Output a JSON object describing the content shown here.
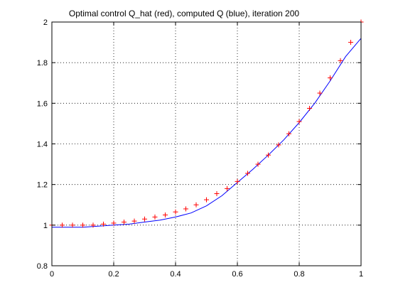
{
  "chart_data": {
    "type": "line",
    "title": "Optimal control Q_hat (red), computed Q (blue), iteration 200",
    "xlabel": "",
    "ylabel": "",
    "xlim": [
      0,
      1
    ],
    "ylim": [
      0.8,
      2
    ],
    "xticks": [
      "0",
      "0.2",
      "0.4",
      "0.6",
      "0.8",
      "1"
    ],
    "yticks": [
      "0.8",
      "1",
      "1.2",
      "1.4",
      "1.6",
      "1.8",
      "2"
    ],
    "grid": true,
    "series": [
      {
        "style": "markers",
        "marker": "plus",
        "color": "#ff0000",
        "x": [
          0,
          0.0333,
          0.0667,
          0.1,
          0.1333,
          0.1667,
          0.2,
          0.2333,
          0.2667,
          0.3,
          0.3333,
          0.3667,
          0.4,
          0.4333,
          0.4667,
          0.5,
          0.5333,
          0.5667,
          0.6,
          0.6333,
          0.6667,
          0.7,
          0.7333,
          0.7667,
          0.8,
          0.8333,
          0.8667,
          0.9,
          0.9333,
          0.9667,
          1
        ],
        "y": [
          1.0,
          1.0,
          1.0,
          1.0,
          1.0,
          1.005,
          1.01,
          1.015,
          1.02,
          1.03,
          1.04,
          1.05,
          1.065,
          1.08,
          1.1,
          1.125,
          1.155,
          1.18,
          1.215,
          1.255,
          1.3,
          1.345,
          1.395,
          1.45,
          1.51,
          1.575,
          1.65,
          1.725,
          1.81,
          1.9,
          2.0
        ]
      },
      {
        "style": "line",
        "color": "#0000ff",
        "x": [
          0,
          0.05,
          0.1,
          0.15,
          0.2,
          0.25,
          0.3,
          0.35,
          0.4,
          0.45,
          0.5,
          0.55,
          0.6,
          0.65,
          0.7,
          0.75,
          0.8,
          0.85,
          0.9,
          0.95,
          1
        ],
        "y": [
          0.99,
          0.99,
          0.99,
          0.995,
          1.0,
          1.005,
          1.015,
          1.025,
          1.04,
          1.06,
          1.095,
          1.145,
          1.21,
          1.275,
          1.345,
          1.42,
          1.505,
          1.6,
          1.71,
          1.83,
          1.92
        ]
      }
    ]
  }
}
